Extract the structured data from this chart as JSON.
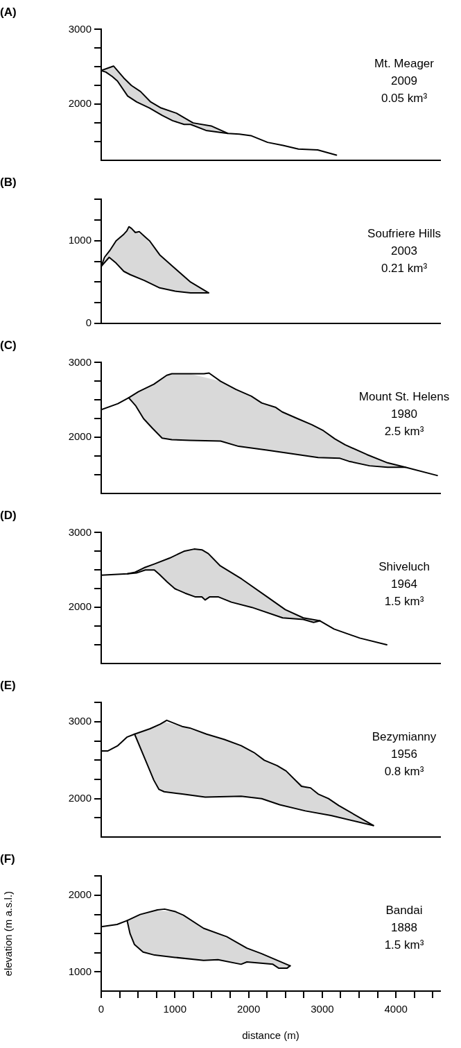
{
  "chart_data": [
    {
      "type": "line",
      "title": "(A)",
      "annotations": [
        "Mt. Meager",
        "2009",
        "0.05 km³"
      ],
      "xlim": [
        0,
        4600
      ],
      "ylim": [
        1250,
        3000
      ],
      "yticks": [
        {
          "value": 1500,
          "label": null
        },
        {
          "value": 1750,
          "label": null
        },
        2000,
        {
          "value": 2250,
          "label": null
        },
        {
          "value": 2500,
          "label": null
        },
        {
          "value": 2750,
          "label": null
        },
        3000
      ],
      "tick_labels": "y",
      "series": [
        {
          "color": "#000000",
          "x": [
            0,
            167,
            307,
            411,
            533,
            672,
            812,
            1021,
            1247,
            1491,
            1718,
            1875,
            2031,
            2258,
            2467,
            2676,
            2937,
            3192
          ],
          "values": [
            2450,
            2510,
            2350,
            2250,
            2170,
            2030,
            1950,
            1880,
            1750,
            1710,
            1610,
            1600,
            1580,
            1490,
            1450,
            1400,
            1390,
            1320
          ]
        },
        {
          "color": "#000000",
          "x": [
            0,
            63,
            150,
            220,
            359,
            481,
            655,
            829,
            969,
            1125,
            1213,
            1422,
            1561,
            1718
          ],
          "values": [
            2450,
            2430,
            2370,
            2310,
            2110,
            2030,
            1950,
            1850,
            1780,
            1730,
            1730,
            1650,
            1630,
            1610
          ],
          "lower": [
            2450,
            2430,
            2370,
            2310,
            2110,
            2030,
            1950,
            1850,
            1780,
            1730,
            1730,
            1650,
            1630,
            1610
          ],
          "upper": [
            2450,
            2470,
            2500,
            2450,
            2300,
            2200,
            2050,
            1940,
            1890,
            1820,
            1770,
            1720,
            1680,
            1610
          ]
        }
      ]
    },
    {
      "type": "line",
      "title": "(B)",
      "annotations": [
        "Soufriere Hills",
        "2003",
        "0.21 km³"
      ],
      "xlim": [
        0,
        4600
      ],
      "ylim": [
        0,
        1500
      ],
      "yticks": [
        0,
        {
          "value": 250,
          "label": null
        },
        {
          "value": 500,
          "label": null
        },
        {
          "value": 750,
          "label": null
        },
        1000,
        {
          "value": 1250,
          "label": null
        },
        {
          "value": 1500,
          "label": null
        }
      ],
      "tick_labels": "y",
      "series": [
        {
          "color": "#000000",
          "x": [
            0,
            45,
            115,
            202,
            307,
            348,
            376,
            411,
            463,
            516,
            655,
            794,
            969,
            1213,
            1456
          ],
          "values": [
            690,
            800,
            880,
            1000,
            1080,
            1120,
            1170,
            1150,
            1100,
            1110,
            1000,
            830,
            690,
            500,
            370
          ]
        },
        {
          "color": "#000000",
          "x": [
            0,
            108,
            202,
            307,
            394,
            585,
            794,
            1003,
            1213,
            1456
          ],
          "values": [
            690,
            800,
            730,
            630,
            590,
            520,
            430,
            390,
            370,
            370
          ],
          "lower": [
            690,
            800,
            730,
            630,
            590,
            520,
            430,
            390,
            370,
            370
          ],
          "upper": [
            690,
            870,
            1000,
            1080,
            1160,
            1050,
            830,
            670,
            500,
            370
          ]
        }
      ]
    },
    {
      "type": "line",
      "title": "(C)",
      "annotations": [
        "Mount St. Helens",
        "1980",
        "2.5 km³"
      ],
      "xlim": [
        0,
        4600
      ],
      "ylim": [
        1250,
        3000
      ],
      "yticks": [
        {
          "value": 1500,
          "label": null
        },
        {
          "value": 1750,
          "label": null
        },
        2000,
        {
          "value": 2250,
          "label": null
        },
        {
          "value": 2500,
          "label": null
        },
        {
          "value": 2750,
          "label": null
        },
        3000
      ],
      "tick_labels": "y",
      "series": [
        {
          "color": "#000000",
          "x": [
            0,
            226,
            373,
            505,
            714,
            889,
            958,
            1098,
            1394,
            1463,
            1620,
            1829,
            2038,
            2178,
            2369,
            2456,
            2666,
            2857,
            3014,
            3171,
            3310,
            3606,
            3885,
            4129,
            4560
          ],
          "values": [
            2370,
            2450,
            2530,
            2610,
            2710,
            2830,
            2850,
            2850,
            2850,
            2860,
            2750,
            2640,
            2550,
            2460,
            2400,
            2340,
            2250,
            2170,
            2090,
            1980,
            1900,
            1770,
            1660,
            1600,
            1490
          ]
        },
        {
          "color": "#000000",
          "x": [
            373,
            470,
            575,
            697,
            826,
            958,
            1202,
            1620,
            1864,
            2247,
            2944,
            3240,
            3362,
            3641,
            3885,
            4129
          ],
          "values": [
            2530,
            2420,
            2250,
            2120,
            1990,
            1970,
            1960,
            1950,
            1880,
            1830,
            1730,
            1720,
            1680,
            1620,
            1600,
            1600
          ],
          "lower": [
            2530,
            2420,
            2250,
            2120,
            1990,
            1970,
            1960,
            1950,
            1880,
            1830,
            1730,
            1720,
            1680,
            1620,
            1600,
            1600
          ],
          "upper": [
            2530,
            2590,
            2640,
            2700,
            2790,
            2850,
            2850,
            2750,
            2620,
            2440,
            2130,
            1940,
            1880,
            1750,
            1660,
            1600
          ]
        }
      ]
    },
    {
      "type": "line",
      "title": "(D)",
      "annotations": [
        "Shiveluch",
        "1964",
        "1.5 km³"
      ],
      "xlim": [
        0,
        4600
      ],
      "ylim": [
        1250,
        3000
      ],
      "yticks": [
        {
          "value": 1500,
          "label": null
        },
        {
          "value": 1750,
          "label": null
        },
        2000,
        {
          "value": 2250,
          "label": null
        },
        {
          "value": 2500,
          "label": null
        },
        {
          "value": 2750,
          "label": null
        },
        3000
      ],
      "tick_labels": "y",
      "series": [
        {
          "color": "#000000",
          "x": [
            0,
            355,
            460,
            582,
            721,
            930,
            1122,
            1261,
            1366,
            1453,
            1610,
            1906,
            2254,
            2498,
            2742,
            2969,
            3160,
            3509,
            3875
          ],
          "values": [
            2430,
            2450,
            2470,
            2530,
            2580,
            2660,
            2750,
            2780,
            2770,
            2720,
            2560,
            2380,
            2140,
            1970,
            1860,
            1820,
            1710,
            1590,
            1500
          ]
        },
        {
          "color": "#000000",
          "x": [
            355,
            477,
            599,
            721,
            791,
            895,
            1000,
            1139,
            1279,
            1366,
            1411,
            1470,
            1592,
            1767,
            2045,
            2463,
            2742,
            2882,
            2969
          ],
          "values": [
            2450,
            2460,
            2500,
            2500,
            2440,
            2340,
            2250,
            2190,
            2140,
            2140,
            2100,
            2140,
            2140,
            2070,
            2000,
            1860,
            1840,
            1800,
            1820
          ],
          "lower": [
            2450,
            2460,
            2500,
            2500,
            2440,
            2340,
            2250,
            2190,
            2140,
            2140,
            2100,
            2140,
            2140,
            2070,
            2000,
            1860,
            1840,
            1800,
            1820
          ],
          "upper": [
            2450,
            2480,
            2530,
            2580,
            2600,
            2650,
            2700,
            2760,
            2780,
            2770,
            2740,
            2700,
            2580,
            2460,
            2280,
            1990,
            1860,
            1840,
            1820
          ]
        }
      ]
    },
    {
      "type": "line",
      "title": "(E)",
      "annotations": [
        "Bezymianny",
        "1956",
        "0.8 km³"
      ],
      "xlim": [
        0,
        4600
      ],
      "ylim": [
        1500,
        3250
      ],
      "yticks": [
        {
          "value": 1750,
          "label": null
        },
        2000,
        {
          "value": 2250,
          "label": null
        },
        {
          "value": 2500,
          "label": null
        },
        {
          "value": 2750,
          "label": null
        },
        3000,
        {
          "value": 3250,
          "label": null
        }
      ],
      "tick_labels": "y",
      "series": [
        {
          "color": "#000000",
          "x": [
            0,
            87,
            226,
            348,
            453,
            662,
            801,
            889,
            1098,
            1202,
            1429,
            1672,
            1899,
            2073,
            2213,
            2387,
            2509,
            2718,
            2840,
            2944,
            3084,
            3223,
            3693
          ],
          "values": [
            2620,
            2620,
            2690,
            2800,
            2840,
            2910,
            2970,
            3020,
            2940,
            2920,
            2840,
            2770,
            2690,
            2600,
            2500,
            2430,
            2360,
            2160,
            2140,
            2060,
            2000,
            1910,
            1650
          ]
        },
        {
          "color": "#000000",
          "x": [
            453,
            610,
            714,
            784,
            854,
            1098,
            1411,
            1899,
            2178,
            2422,
            2770,
            3118,
            3693
          ],
          "values": [
            2840,
            2480,
            2240,
            2120,
            2090,
            2060,
            2020,
            2030,
            2000,
            1920,
            1840,
            1780,
            1650
          ],
          "lower": [
            2840,
            2480,
            2240,
            2120,
            2090,
            2060,
            2020,
            2030,
            2000,
            1920,
            1840,
            1780,
            1650
          ],
          "upper": [
            2840,
            2890,
            2930,
            2970,
            3000,
            2940,
            2840,
            2690,
            2520,
            2410,
            2150,
            1980,
            1650
          ]
        }
      ]
    },
    {
      "type": "line",
      "title": "(F)",
      "xlabel": "distance (m)",
      "ylabel": "elevation (m a.s.l.)",
      "annotations": [
        "Bandai",
        "1888",
        "1.5 km³"
      ],
      "xlim": [
        0,
        4600
      ],
      "ylim": [
        750,
        2250
      ],
      "xticks": [
        0,
        {
          "value": 250,
          "label": null
        },
        {
          "value": 500,
          "label": null
        },
        {
          "value": 750,
          "label": null
        },
        1000,
        {
          "value": 1250,
          "label": null
        },
        {
          "value": 1500,
          "label": null
        },
        {
          "value": 1750,
          "label": null
        },
        2000,
        {
          "value": 2250,
          "label": null
        },
        {
          "value": 2500,
          "label": null
        },
        {
          "value": 2750,
          "label": null
        },
        3000,
        {
          "value": 3250,
          "label": null
        },
        {
          "value": 3500,
          "label": null
        },
        {
          "value": 3750,
          "label": null
        },
        4000,
        {
          "value": 4250,
          "label": null
        },
        {
          "value": 4500,
          "label": null
        }
      ],
      "yticks": [
        1000,
        {
          "value": 1250,
          "label": null
        },
        {
          "value": 1500,
          "label": null
        },
        {
          "value": 1750,
          "label": null
        },
        2000,
        {
          "value": 2250,
          "label": null
        }
      ],
      "series": [
        {
          "color": "#000000",
          "x": [
            0,
            215,
            352,
            528,
            763,
            861,
            998,
            1115,
            1389,
            1703,
            1977,
            2172,
            2564
          ],
          "values": [
            1590,
            1620,
            1670,
            1750,
            1810,
            1820,
            1790,
            1740,
            1570,
            1460,
            1310,
            1240,
            1080
          ]
        },
        {
          "color": "#000000",
          "x": [
            352,
            391,
            450,
            568,
            724,
            998,
            1389,
            1585,
            1898,
            1977,
            2329,
            2407,
            2524,
            2564
          ],
          "values": [
            1670,
            1500,
            1360,
            1260,
            1220,
            1190,
            1150,
            1160,
            1100,
            1130,
            1100,
            1050,
            1050,
            1080
          ],
          "lower": [
            1670,
            1500,
            1360,
            1260,
            1220,
            1190,
            1150,
            1160,
            1100,
            1130,
            1100,
            1050,
            1050,
            1080
          ],
          "upper": [
            1670,
            1690,
            1710,
            1760,
            1800,
            1790,
            1570,
            1500,
            1350,
            1310,
            1180,
            1150,
            1100,
            1080
          ]
        }
      ]
    }
  ]
}
